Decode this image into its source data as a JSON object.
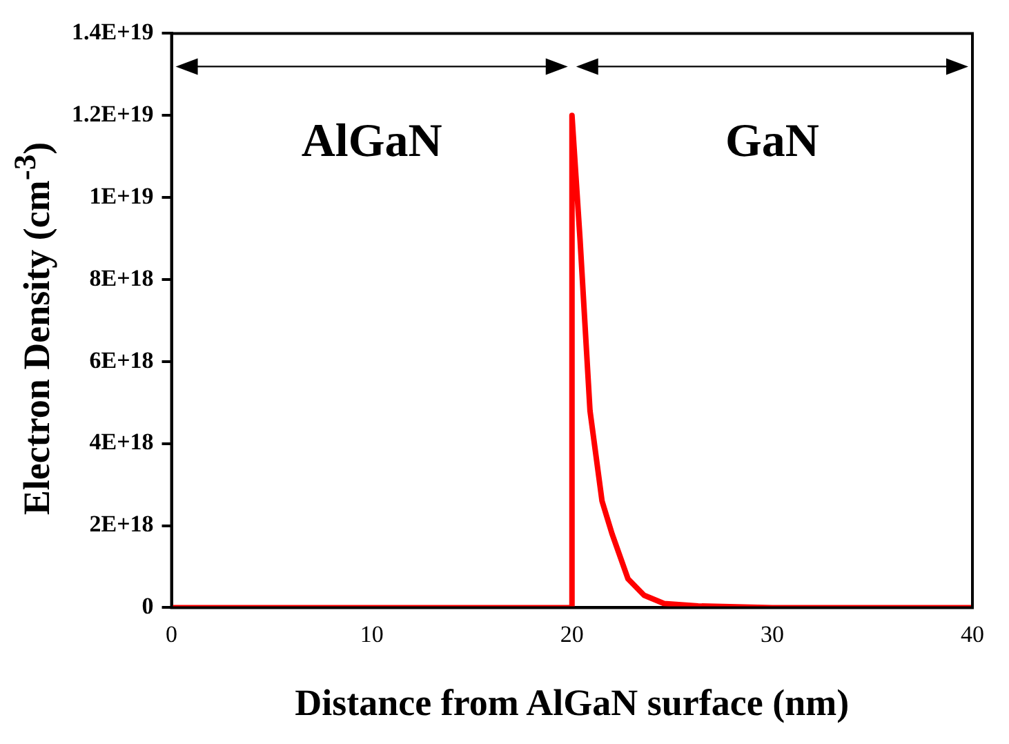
{
  "chart_data": {
    "type": "line",
    "xlabel": "Distance from AlGaN surface (nm)",
    "ylabel": "Electron Density (cm$^{-3}$)",
    "series": [
      {
        "color": "#ff0000",
        "x": [
          0,
          20,
          20,
          20.4,
          20.9,
          21.5,
          22,
          22.8,
          23.6,
          24.6,
          26.3,
          30,
          40
        ],
        "values": [
          0,
          0,
          1.2e+19,
          9e+18,
          4.8e+18,
          2.6e+18,
          1.8e+18,
          7e+17,
          3e+17,
          1e+17,
          4e+16,
          0,
          0
        ]
      }
    ],
    "xlim": [
      0,
      40
    ],
    "xticks": [
      0,
      10,
      20,
      30,
      40
    ],
    "ylim": [
      0,
      1.4e+19
    ],
    "yticks": [
      {
        "value": 0,
        "label": "0"
      },
      {
        "value": 2e+18,
        "label": "2E+18"
      },
      {
        "value": 4e+18,
        "label": "4E+18"
      },
      {
        "value": 6e+18,
        "label": "6E+18"
      },
      {
        "value": 8e+18,
        "label": "8E+18"
      },
      {
        "value": 1e+19,
        "label": "1E+19"
      },
      {
        "value": 1.2e+19,
        "label": "1.2E+19"
      },
      {
        "value": 1.4e+19,
        "label": "1.4E+19"
      }
    ],
    "annotations": [
      "AlGaN",
      "GaN"
    ],
    "grid": false,
    "legend": false,
    "marker": "none",
    "line_style": "solid"
  }
}
